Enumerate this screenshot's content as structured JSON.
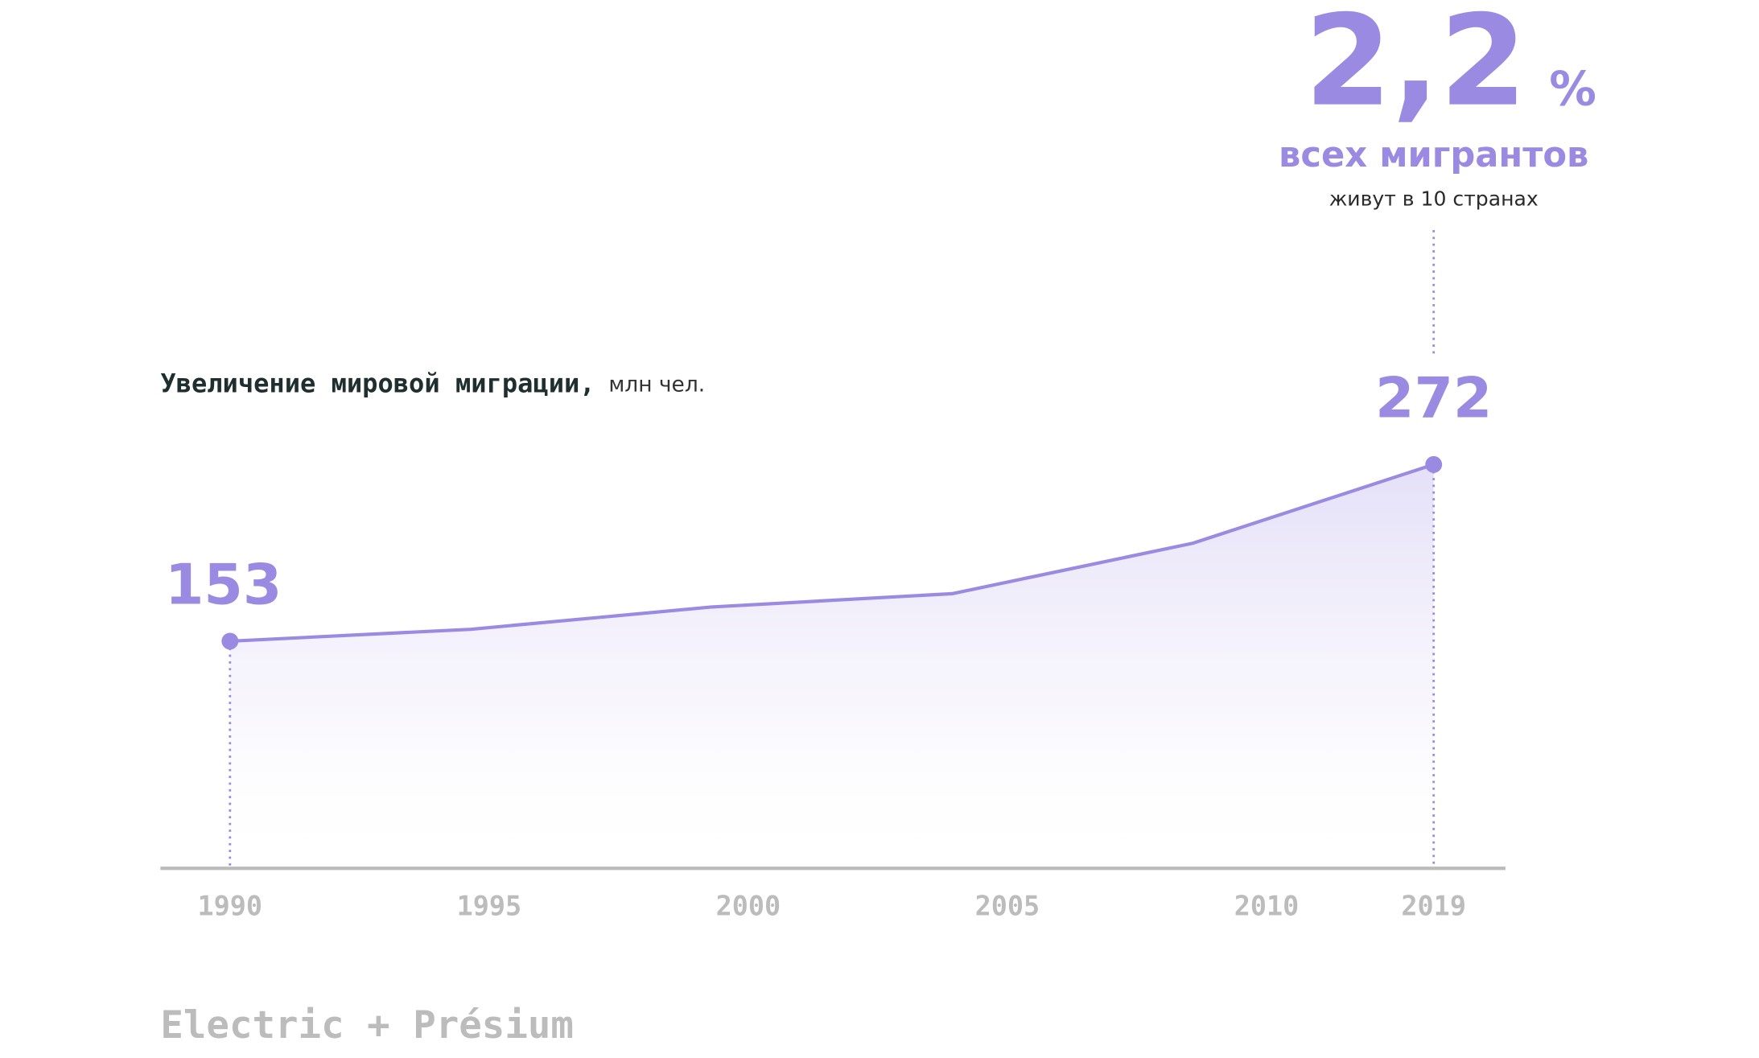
{
  "chart_data": {
    "type": "line",
    "title": "Увеличение мировой миграции,",
    "subtitle": "млн чел.",
    "categories": [
      "1990",
      "1995",
      "2000",
      "2005",
      "2010",
      "2019"
    ],
    "values": [
      153,
      161,
      176,
      185,
      219,
      272
    ],
    "color": "#9b8ae2",
    "ylim": [
      0,
      272
    ],
    "annotation": {
      "number": "2,2",
      "unit": "%",
      "headline": "всех мигрантов",
      "note": "живут в 10 странах"
    },
    "footer": "Electric + Présium"
  }
}
